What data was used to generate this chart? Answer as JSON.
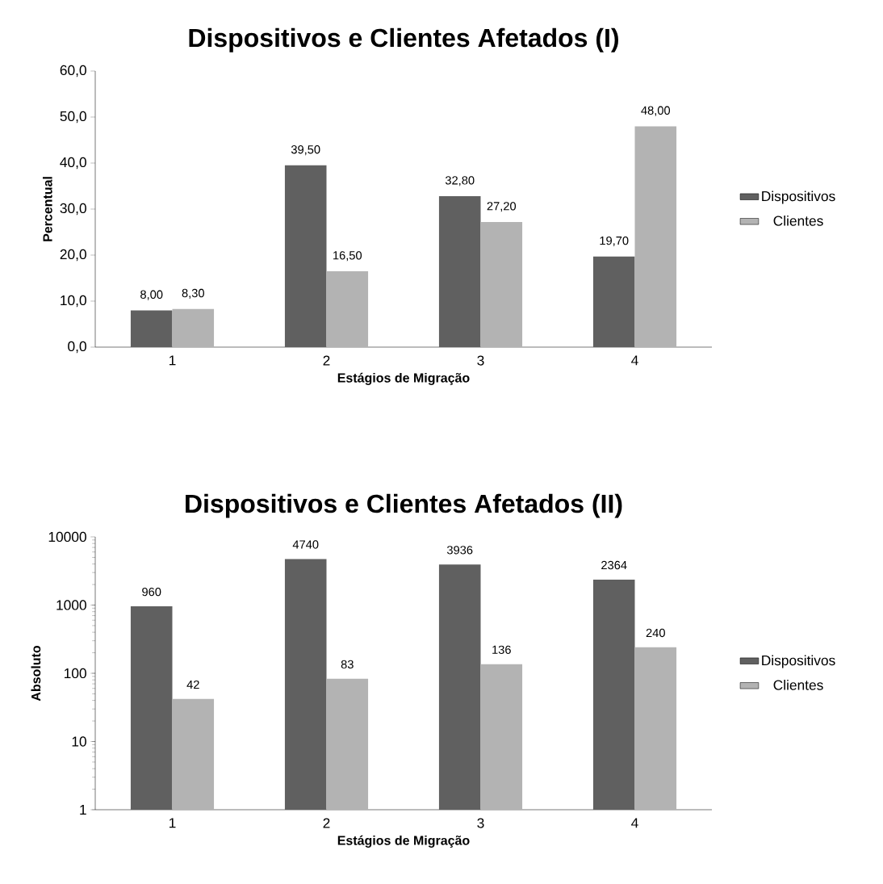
{
  "chart_data": [
    {
      "type": "bar",
      "title": "Dispositivos e Clientes Afetados (I)",
      "xlabel": "Estágios de Migração",
      "ylabel": "Percentual",
      "categories": [
        "1",
        "2",
        "3",
        "4"
      ],
      "ylim": [
        0,
        60
      ],
      "yticks": [
        {
          "value": 0,
          "label": "0,0"
        },
        {
          "value": 10,
          "label": "10,0"
        },
        {
          "value": 20,
          "label": "20,0"
        },
        {
          "value": 30,
          "label": "30,0"
        },
        {
          "value": 40,
          "label": "40,0"
        },
        {
          "value": 50,
          "label": "50,0"
        },
        {
          "value": 60,
          "label": "60,0"
        }
      ],
      "legend": "right",
      "grid": false,
      "series": [
        {
          "name": "Dispositivos",
          "color": "#606060",
          "values": [
            8.0,
            39.5,
            32.8,
            19.7
          ],
          "value_labels": [
            "8,00",
            "39,50",
            "32,80",
            "19,70"
          ]
        },
        {
          "name": "Clientes",
          "color": "#b3b3b3",
          "values": [
            8.3,
            16.5,
            27.2,
            48.0
          ],
          "value_labels": [
            "8,30",
            "16,50",
            "27,20",
            "48,00"
          ]
        }
      ]
    },
    {
      "type": "bar",
      "title": "Dispositivos e Clientes Afetados (II)",
      "xlabel": "Estágios de Migração",
      "ylabel": "Absoluto",
      "categories": [
        "1",
        "2",
        "3",
        "4"
      ],
      "log": true,
      "ylim": [
        1,
        10000
      ],
      "yticks": [
        1,
        10,
        100,
        1000,
        10000
      ],
      "legend": "right",
      "grid": false,
      "data_labels": true,
      "series": [
        {
          "name": "Dispositivos",
          "color": "#606060",
          "values": [
            960,
            4740,
            3936,
            2364
          ]
        },
        {
          "name": "Clientes",
          "color": "#b3b3b3",
          "values": [
            42,
            83,
            136,
            240
          ]
        }
      ]
    }
  ]
}
